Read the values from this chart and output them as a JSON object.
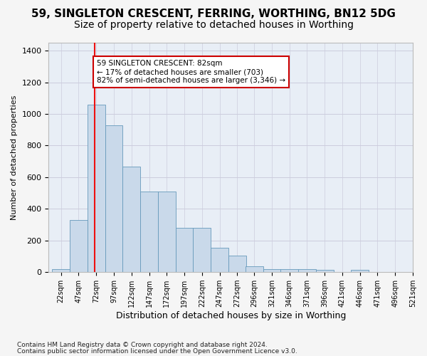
{
  "title": "59, SINGLETON CRESCENT, FERRING, WORTHING, BN12 5DG",
  "subtitle": "Size of property relative to detached houses in Worthing",
  "xlabel": "Distribution of detached houses by size in Worthing",
  "ylabel": "Number of detached properties",
  "footnote1": "Contains HM Land Registry data © Crown copyright and database right 2024.",
  "footnote2": "Contains public sector information licensed under the Open Government Licence v3.0.",
  "annotation_line1": "59 SINGLETON CRESCENT: 82sqm",
  "annotation_line2": "← 17% of detached houses are smaller (703)",
  "annotation_line3": "82% of semi-detached houses are larger (3,346) →",
  "property_size": 82,
  "bar_edges": [
    22,
    47,
    72,
    97,
    122,
    147,
    172,
    197,
    222,
    247,
    272,
    296,
    321,
    346,
    371,
    396,
    421,
    446,
    471,
    496,
    521
  ],
  "bar_heights": [
    20,
    330,
    1060,
    930,
    665,
    510,
    510,
    280,
    280,
    155,
    105,
    35,
    20,
    20,
    20,
    15,
    0,
    15,
    0,
    0,
    0
  ],
  "bar_color": "#c9d9ea",
  "bar_edge_color": "#6699bb",
  "vline_color": "#ee1111",
  "vline_x": 82,
  "ylim": [
    0,
    1450
  ],
  "yticks": [
    0,
    200,
    400,
    600,
    800,
    1000,
    1200,
    1400
  ],
  "grid_color": "#ccccdd",
  "bg_color": "#e8eef6",
  "annotation_box_facecolor": "#ffffff",
  "annotation_box_edgecolor": "#cc0000",
  "title_fontsize": 11,
  "subtitle_fontsize": 10,
  "footnote_fontsize": 6.5
}
